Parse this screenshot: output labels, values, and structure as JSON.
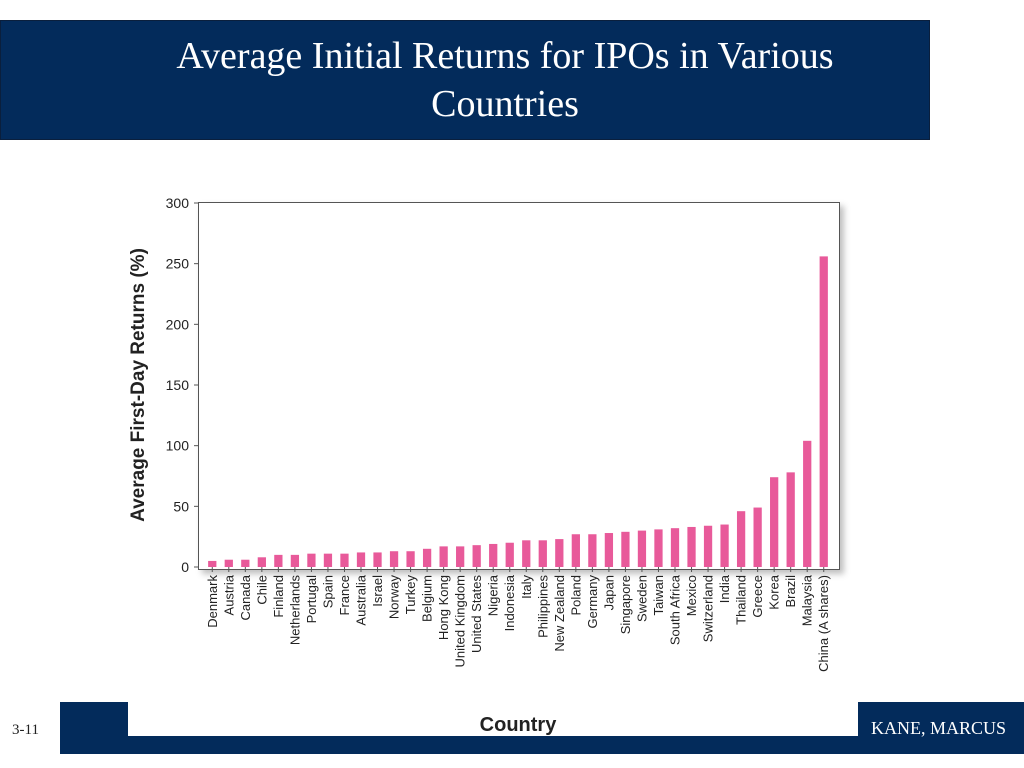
{
  "slide": {
    "title": "Average Initial Returns for IPOs in Various Countries",
    "number": "3-11",
    "authors": "KANE, MARCUS"
  },
  "colors": {
    "header": "#032b5b",
    "bar": "#e85a9a"
  },
  "chart_data": {
    "type": "bar",
    "title": "",
    "xlabel": "Country",
    "ylabel": "Average First-Day Returns (%)",
    "ylim": [
      0,
      300
    ],
    "yticks": [
      0,
      50,
      100,
      150,
      200,
      250,
      300
    ],
    "grid": false,
    "categories": [
      "Denmark",
      "Austria",
      "Canada",
      "Chile",
      "Finland",
      "Netherlands",
      "Portugal",
      "Spain",
      "France",
      "Australia",
      "Israel",
      "Norway",
      "Turkey",
      "Belgium",
      "Hong Kong",
      "United Kingdom",
      "United States",
      "Nigeria",
      "Indonesia",
      "Italy",
      "Philippines",
      "New Zealand",
      "Poland",
      "Germany",
      "Japan",
      "Singapore",
      "Sweden",
      "Taiwan",
      "South Africa",
      "Mexico",
      "Switzerland",
      "India",
      "Thailand",
      "Greece",
      "Korea",
      "Brazil",
      "Malaysia",
      "China (A shares)"
    ],
    "values": [
      5,
      6,
      6,
      8,
      10,
      10,
      11,
      11,
      11,
      12,
      12,
      13,
      13,
      15,
      17,
      17,
      18,
      19,
      20,
      22,
      22,
      23,
      27,
      27,
      28,
      29,
      30,
      31,
      32,
      33,
      34,
      35,
      46,
      49,
      74,
      78,
      104,
      256
    ]
  }
}
